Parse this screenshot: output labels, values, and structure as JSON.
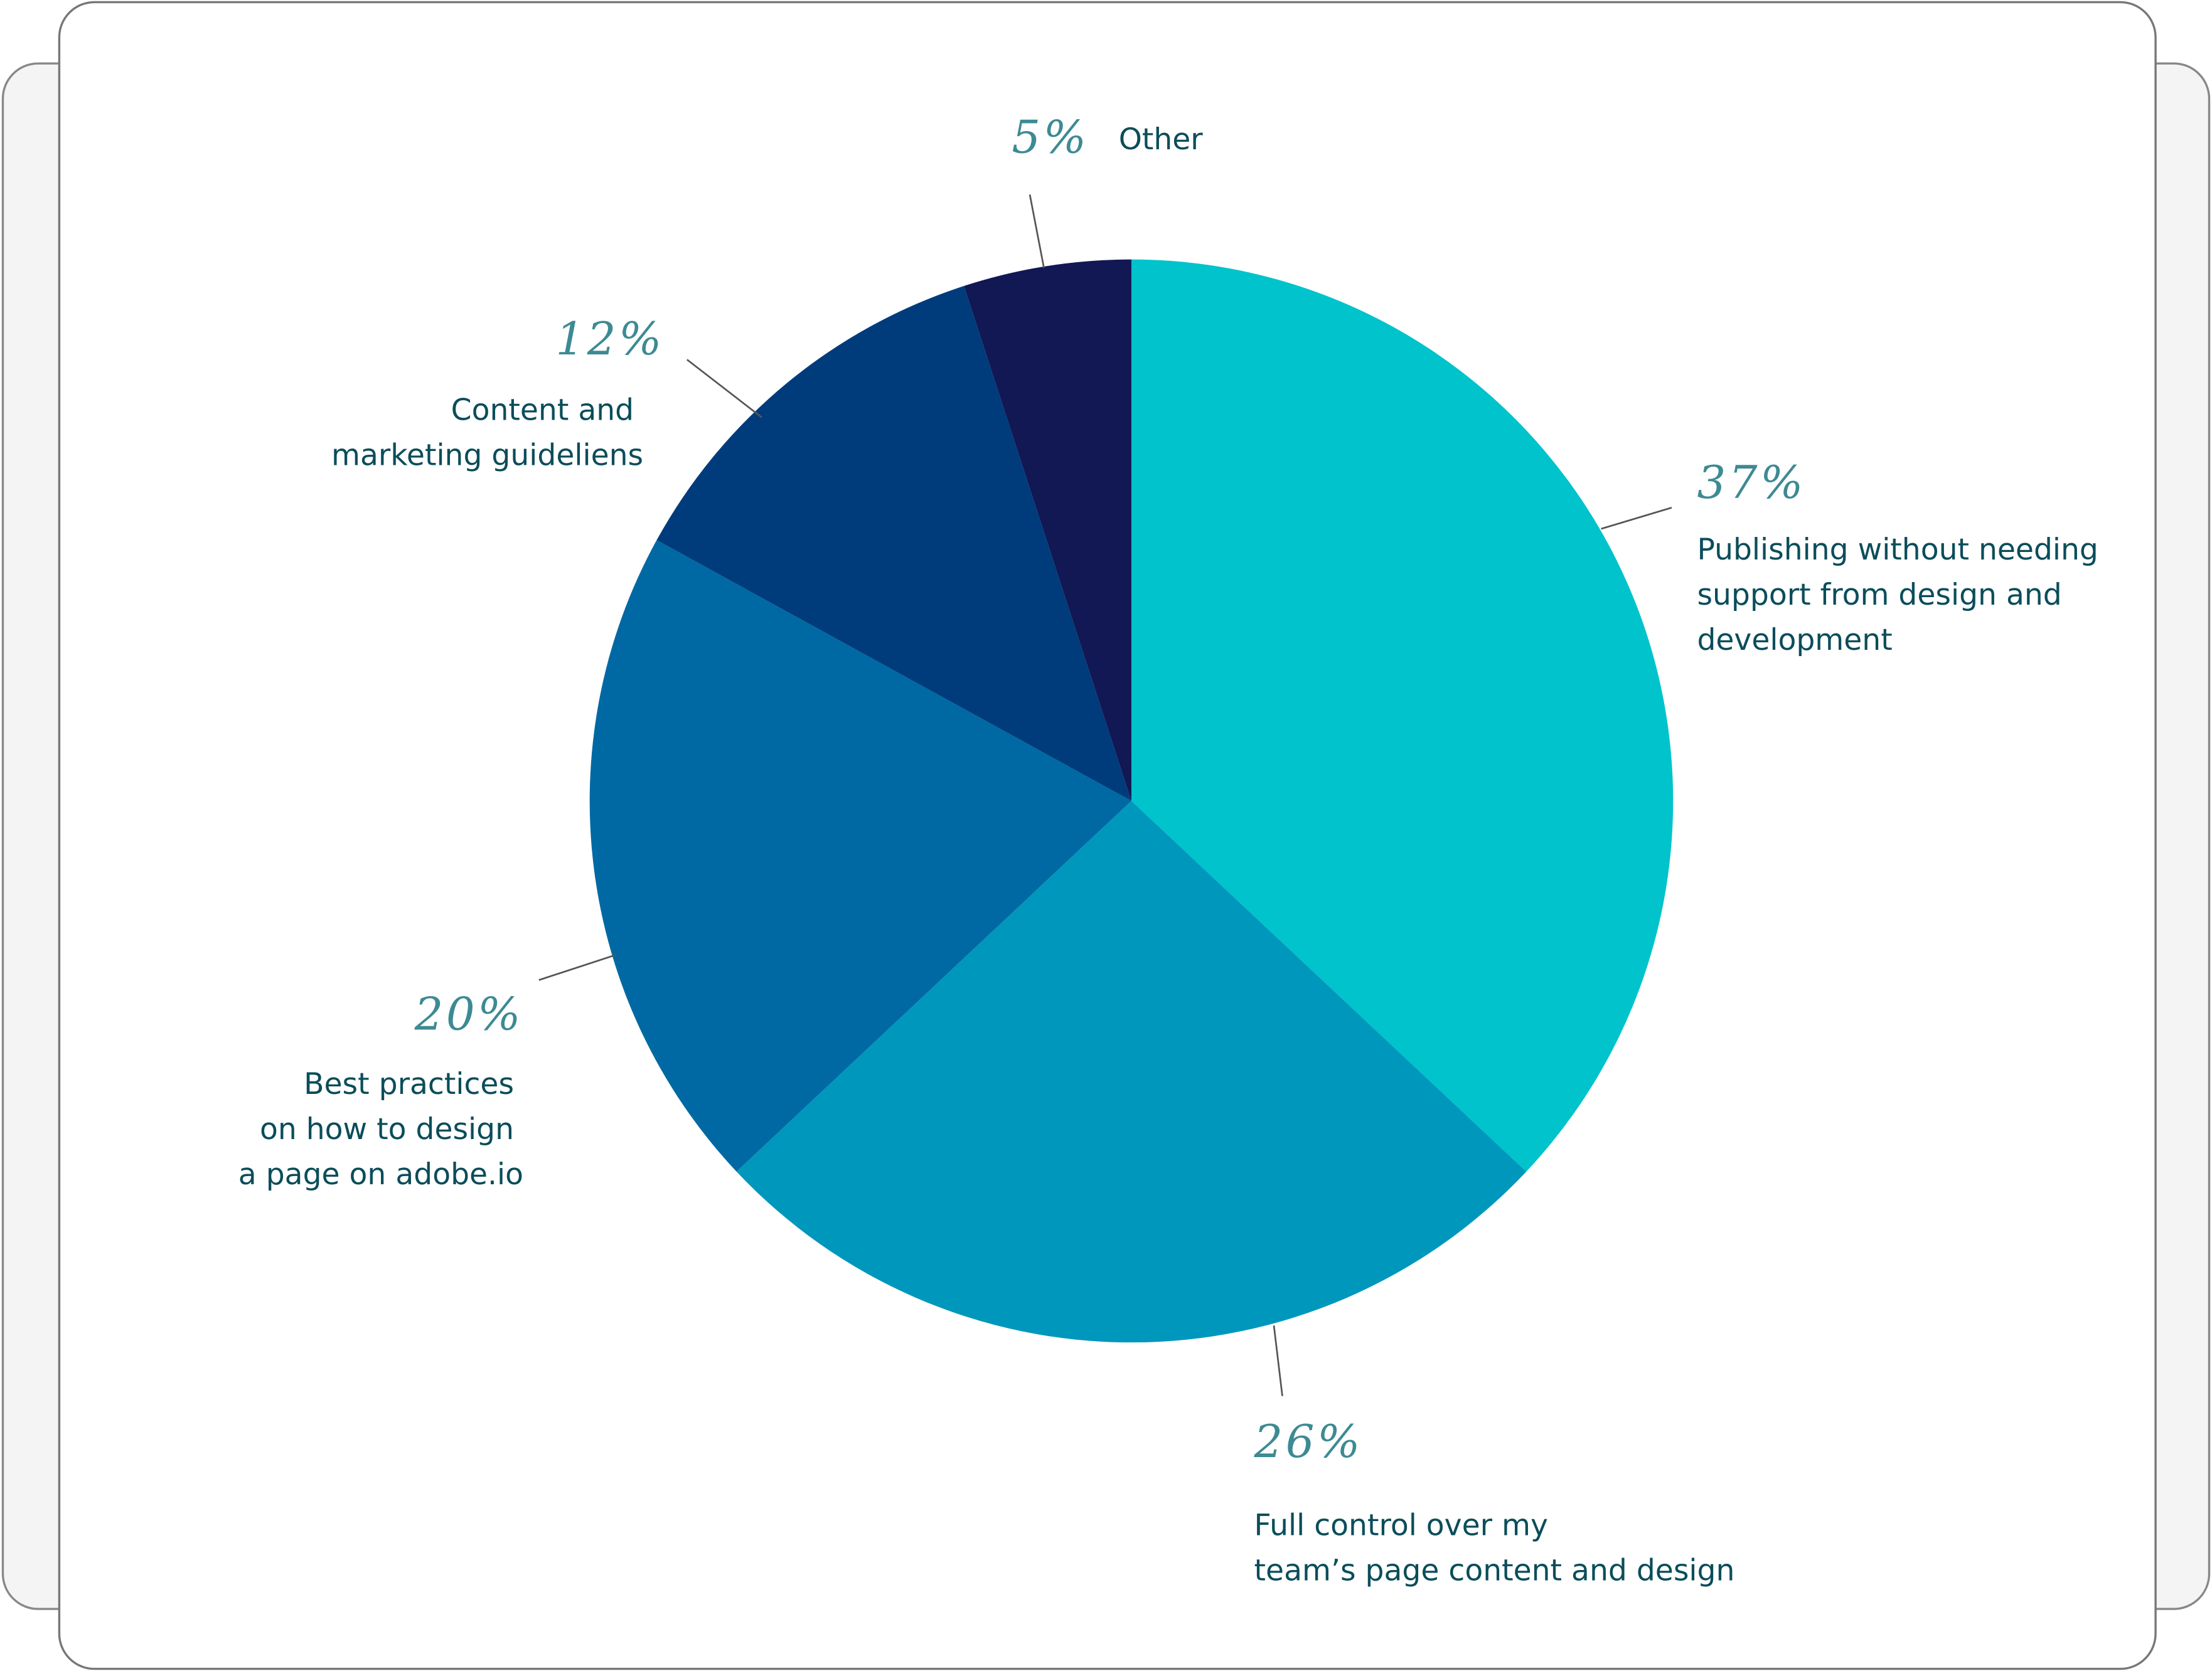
{
  "chart_data": {
    "type": "pie",
    "categories": [
      "Publishing without needing support from design and development",
      "Full control over my team’s page content and design",
      "Best practices on how to design a page on adobe.io",
      "Content and marketing guideliens",
      "Other"
    ],
    "values": [
      37,
      26,
      20,
      12,
      5
    ],
    "value_labels": [
      "37%",
      "26%",
      "20%",
      "12%",
      "5%"
    ],
    "colors": [
      "#00c3cc",
      "#0097bd",
      "#0069a3",
      "#003c7c",
      "#111854"
    ]
  }
}
